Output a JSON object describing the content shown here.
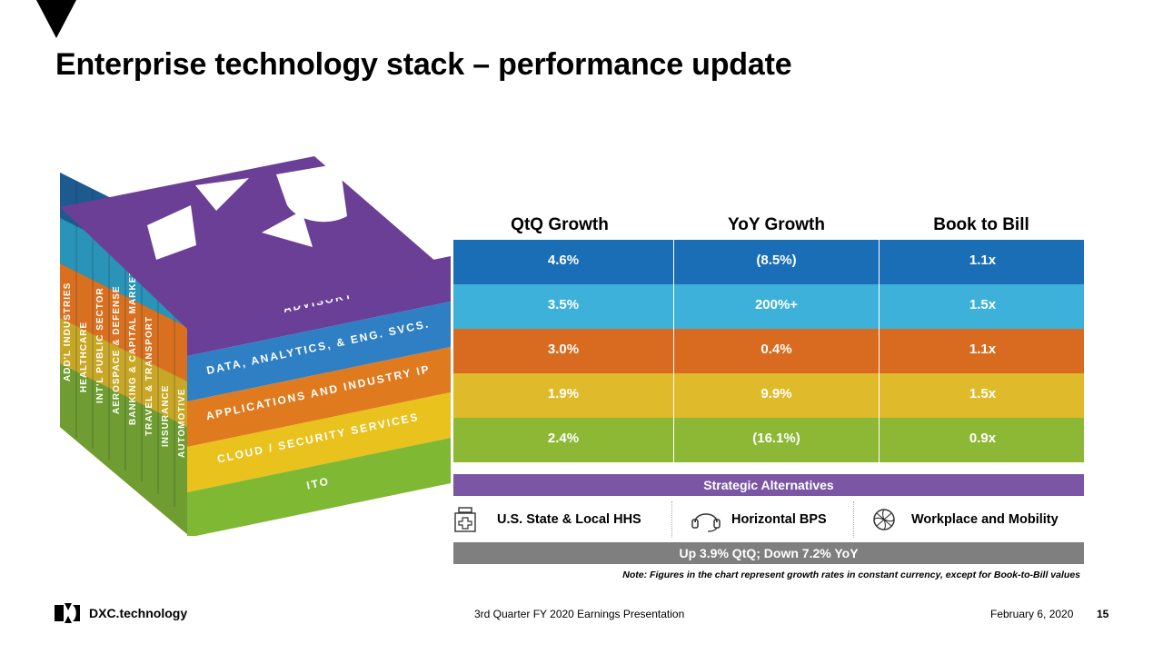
{
  "title": "Enterprise technology stack – performance update",
  "stack": {
    "industries": [
      "ADD'L INDUSTRIES",
      "HEALTHCARE",
      "INT'L PUBLIC SECTOR",
      "AEROSPACE & DEFENSE",
      "BANKING & CAPITAL MARKETS",
      "TRAVEL & TRANSPORT",
      "INSURANCE",
      "AUTOMOTIVE"
    ],
    "layers": [
      {
        "label": "ADVISORY",
        "color": "#6a3f97"
      },
      {
        "label": "DATA, ANALYTICS, & ENG. SVCS.",
        "color": "#2f7fc4"
      },
      {
        "label": "APPLICATIONS AND INDUSTRY IP",
        "color": "#e07a1f"
      },
      {
        "label": "CLOUD / SECURITY SERVICES",
        "color": "#e9c21e"
      },
      {
        "label": "ITO",
        "color": "#7fb833"
      }
    ]
  },
  "table": {
    "headers": [
      "QtQ Growth",
      "YoY Growth",
      "Book to Bill"
    ],
    "rows": [
      {
        "color": "#1a6eb5",
        "cells": [
          "4.6%",
          "(8.5%)",
          "1.1x"
        ]
      },
      {
        "color": "#3db1da",
        "cells": [
          "3.5%",
          "200%+",
          "1.5x"
        ]
      },
      {
        "color": "#d86b1f",
        "cells": [
          "3.0%",
          "0.4%",
          "1.1x"
        ]
      },
      {
        "color": "#dfba2a",
        "cells": [
          "1.9%",
          "9.9%",
          "1.5x"
        ]
      },
      {
        "color": "#8db835",
        "cells": [
          "2.4%",
          "(16.1%)",
          "0.9x"
        ]
      }
    ]
  },
  "strategic": {
    "label": "Strategic Alternatives",
    "color": "#7b56a4",
    "items": [
      {
        "label": "U.S. State & Local HHS",
        "icon": "medical-kit-icon"
      },
      {
        "label": "Horizontal BPS",
        "icon": "headset-icon"
      },
      {
        "label": "Workplace and Mobility",
        "icon": "globe-network-icon"
      }
    ]
  },
  "summary": {
    "label": "Up 3.9% QtQ; Down 7.2% YoY",
    "color": "#7f7f7f"
  },
  "note": "Note: Figures in the chart represent growth rates in constant currency, except for Book-to-Bill values",
  "footer": {
    "brand": "DXC.technology",
    "presentation": "3rd Quarter FY 2020 Earnings Presentation",
    "date": "February 6, 2020",
    "page": "15"
  }
}
